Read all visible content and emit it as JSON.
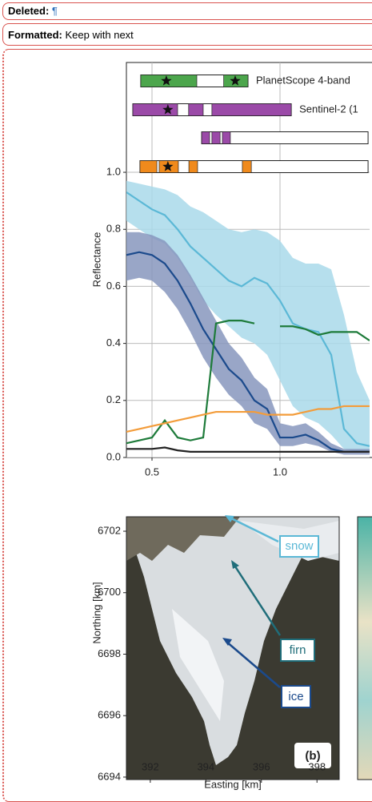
{
  "balloons": [
    {
      "label": "Deleted:",
      "text": "¶"
    },
    {
      "label": "Formatted:",
      "text": "Keep with next"
    }
  ],
  "chart_data": [
    {
      "type": "line",
      "ylabel": "Reflectance",
      "x": [
        0.4,
        0.45,
        0.5,
        0.55,
        0.6,
        0.65,
        0.7,
        0.75,
        0.8,
        0.85,
        0.9,
        0.95,
        1.0,
        1.05,
        1.1,
        1.15,
        1.2,
        1.25,
        1.3,
        1.35
      ],
      "xlim": [
        0.4,
        1.35
      ],
      "xticks": [
        0.5,
        {
          "value": 1,
          "label": "1.0"
        }
      ],
      "ylim": [
        0,
        1.385
      ],
      "yticks": [
        {
          "value": 0,
          "label": "0.0"
        },
        0.2,
        0.4,
        0.6,
        0.8,
        {
          "value": 1,
          "label": "1.0"
        }
      ],
      "grid": true,
      "series": [
        {
          "color": "#5bb8d6",
          "band_color": "#a9d9ea",
          "values": [
            0.93,
            0.9,
            0.87,
            0.85,
            0.8,
            0.74,
            0.7,
            0.66,
            0.62,
            0.6,
            0.63,
            0.61,
            0.55,
            0.47,
            0.45,
            0.44,
            0.36,
            0.1,
            0.05,
            0.04
          ],
          "lower": [
            0.83,
            0.8,
            0.77,
            0.75,
            0.7,
            0.63,
            0.55,
            0.5,
            0.46,
            0.42,
            0.4,
            0.36,
            0.27,
            0.18,
            0.14,
            0.12,
            0.08,
            0.03,
            0.02,
            0.02
          ],
          "upper": [
            0.97,
            0.96,
            0.95,
            0.94,
            0.92,
            0.88,
            0.86,
            0.83,
            0.8,
            0.79,
            0.8,
            0.79,
            0.76,
            0.7,
            0.68,
            0.68,
            0.66,
            0.5,
            0.3,
            0.2
          ]
        },
        {
          "color": "#1b4a8c",
          "band_color": "#8797bd",
          "values": [
            0.71,
            0.72,
            0.71,
            0.68,
            0.62,
            0.54,
            0.45,
            0.38,
            0.31,
            0.27,
            0.2,
            0.17,
            0.07,
            0.07,
            0.08,
            0.06,
            0.03,
            0.02,
            0.02,
            0.02
          ],
          "lower": [
            0.62,
            0.63,
            0.62,
            0.58,
            0.52,
            0.44,
            0.35,
            0.28,
            0.22,
            0.18,
            0.12,
            0.1,
            0.04,
            0.04,
            0.05,
            0.04,
            0.02,
            0.01,
            0.01,
            0.01
          ],
          "upper": [
            0.79,
            0.79,
            0.78,
            0.76,
            0.71,
            0.64,
            0.56,
            0.48,
            0.4,
            0.35,
            0.28,
            0.24,
            0.12,
            0.11,
            0.12,
            0.09,
            0.05,
            0.03,
            0.03,
            0.03
          ]
        },
        {
          "color": "#1e7b3a",
          "values": [
            0.05,
            0.06,
            0.07,
            0.13,
            0.07,
            0.06,
            0.07,
            0.47,
            0.48,
            0.48,
            0.47,
            null,
            0.46,
            0.46,
            0.45,
            0.43,
            0.44,
            0.44,
            0.44,
            0.41
          ]
        },
        {
          "color": "#f39c3a",
          "values": [
            0.09,
            0.1,
            0.11,
            0.12,
            0.13,
            0.14,
            0.15,
            0.16,
            0.16,
            0.16,
            0.16,
            0.15,
            0.15,
            0.15,
            0.16,
            0.17,
            0.17,
            0.18,
            0.18,
            0.18
          ]
        },
        {
          "color": "#222222",
          "values": [
            0.03,
            0.03,
            0.03,
            0.035,
            0.025,
            0.02,
            0.02,
            0.02,
            0.02,
            0.02,
            0.02,
            0.02,
            0.02,
            0.02,
            0.02,
            0.02,
            0.02,
            0.02,
            0.02,
            0.02
          ]
        }
      ],
      "sensors": [
        {
          "name": "PlanetScope 4-band",
          "color": "#4ca64c",
          "range": [
            0.456,
            0.875
          ],
          "bands": [
            [
              0.456,
              0.675
            ],
            [
              0.78,
              0.875
            ]
          ],
          "stars": [
            0.556,
            0.825
          ]
        },
        {
          "name": "Sentinel-2 (1",
          "color": "#9b4aa8",
          "range": [
            0.425,
            1.044
          ],
          "bands": [
            [
              0.425,
              0.6
            ],
            [
              0.643,
              0.7
            ],
            [
              0.734,
              1.044
            ]
          ],
          "stars": [
            0.562
          ]
        },
        {
          "color": "#9b4aa8",
          "range": [
            0.694,
            1.344
          ],
          "bands": [
            [
              0.694,
              0.725
            ],
            [
              0.734,
              0.766
            ],
            [
              0.775,
              0.806
            ]
          ],
          "stars": []
        },
        {
          "color": "#f08a1c",
          "range": [
            0.453,
            1.344
          ],
          "bands": [
            [
              0.453,
              0.519
            ],
            [
              0.528,
              0.603
            ],
            [
              0.644,
              0.678
            ],
            [
              0.853,
              0.888
            ]
          ],
          "stars": [
            0.562
          ]
        }
      ]
    },
    {
      "type": "image",
      "xlabel": "Easting [km]",
      "ylabel": "Northing [km]",
      "xlim": [
        391.14,
        398.8
      ],
      "ylim": [
        6693.92,
        6702.47
      ],
      "xticks": [
        392,
        394,
        396,
        398
      ],
      "yticks": [
        6694,
        6696,
        6698,
        6700,
        6702
      ],
      "annotations": [
        "snow",
        "firn",
        "ice"
      ],
      "panel_label": "(b)"
    }
  ]
}
